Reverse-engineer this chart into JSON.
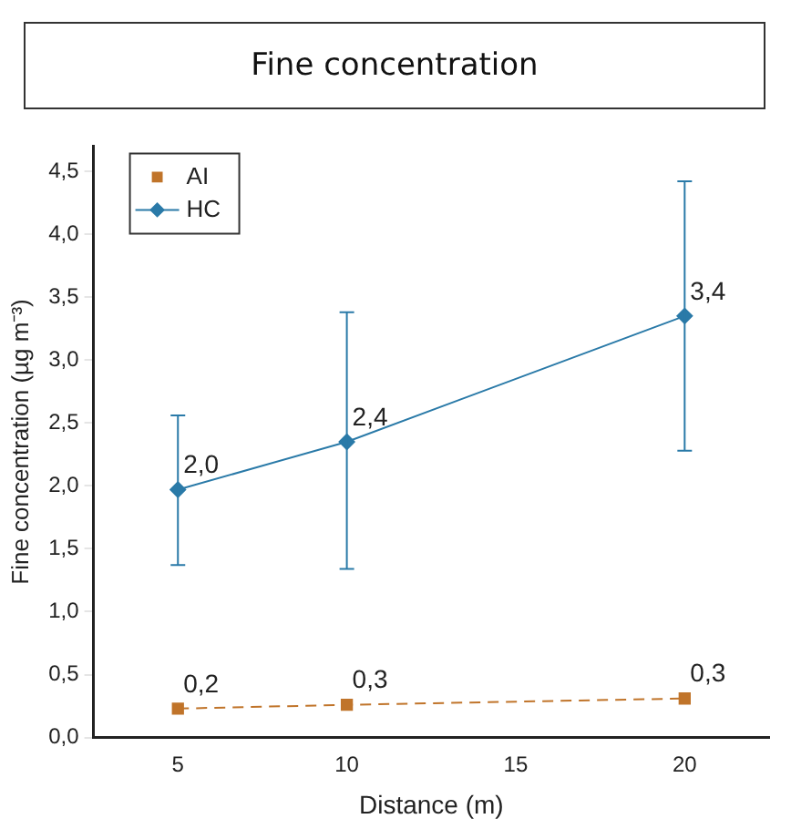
{
  "chart_data": {
    "type": "line",
    "title": "Fine concentration",
    "xlabel": "Distance (m)",
    "ylabel": "Fine concentration (µg m⁻³)",
    "x": [
      5,
      10,
      20
    ],
    "series": [
      {
        "name": "AI",
        "color": "#c0742a",
        "values": [
          0.23,
          0.26,
          0.31
        ],
        "marker": "square",
        "line_style": "dashed",
        "value_labels": [
          "0,2",
          "0,3",
          "0,3"
        ]
      },
      {
        "name": "HC",
        "color": "#2a7aa8",
        "values": [
          1.97,
          2.35,
          3.35
        ],
        "marker": "diamond",
        "line_style": "solid",
        "value_labels": [
          "2,0",
          "2,4",
          "3,4"
        ],
        "errors": [
          [
            1.37,
            2.56
          ],
          [
            1.34,
            3.38
          ],
          [
            2.28,
            4.42
          ]
        ]
      }
    ],
    "xlim": [
      2.5,
      22.5
    ],
    "xticks": [
      5,
      10,
      15,
      20
    ],
    "ylim": [
      0,
      4.7
    ],
    "yticks": [
      {
        "value": 0,
        "label": "0,0"
      },
      {
        "value": 0.5,
        "label": "0,5"
      },
      {
        "value": 1,
        "label": "1,0"
      },
      {
        "value": 1.5,
        "label": "1,5"
      },
      {
        "value": 2,
        "label": "2,0"
      },
      {
        "value": 2.5,
        "label": "2,5"
      },
      {
        "value": 3,
        "label": "3,0"
      },
      {
        "value": 3.5,
        "label": "3,5"
      },
      {
        "value": 4,
        "label": "4,0"
      },
      {
        "value": 4.5,
        "label": "4,5"
      }
    ],
    "legend": "top left",
    "grid": false
  }
}
